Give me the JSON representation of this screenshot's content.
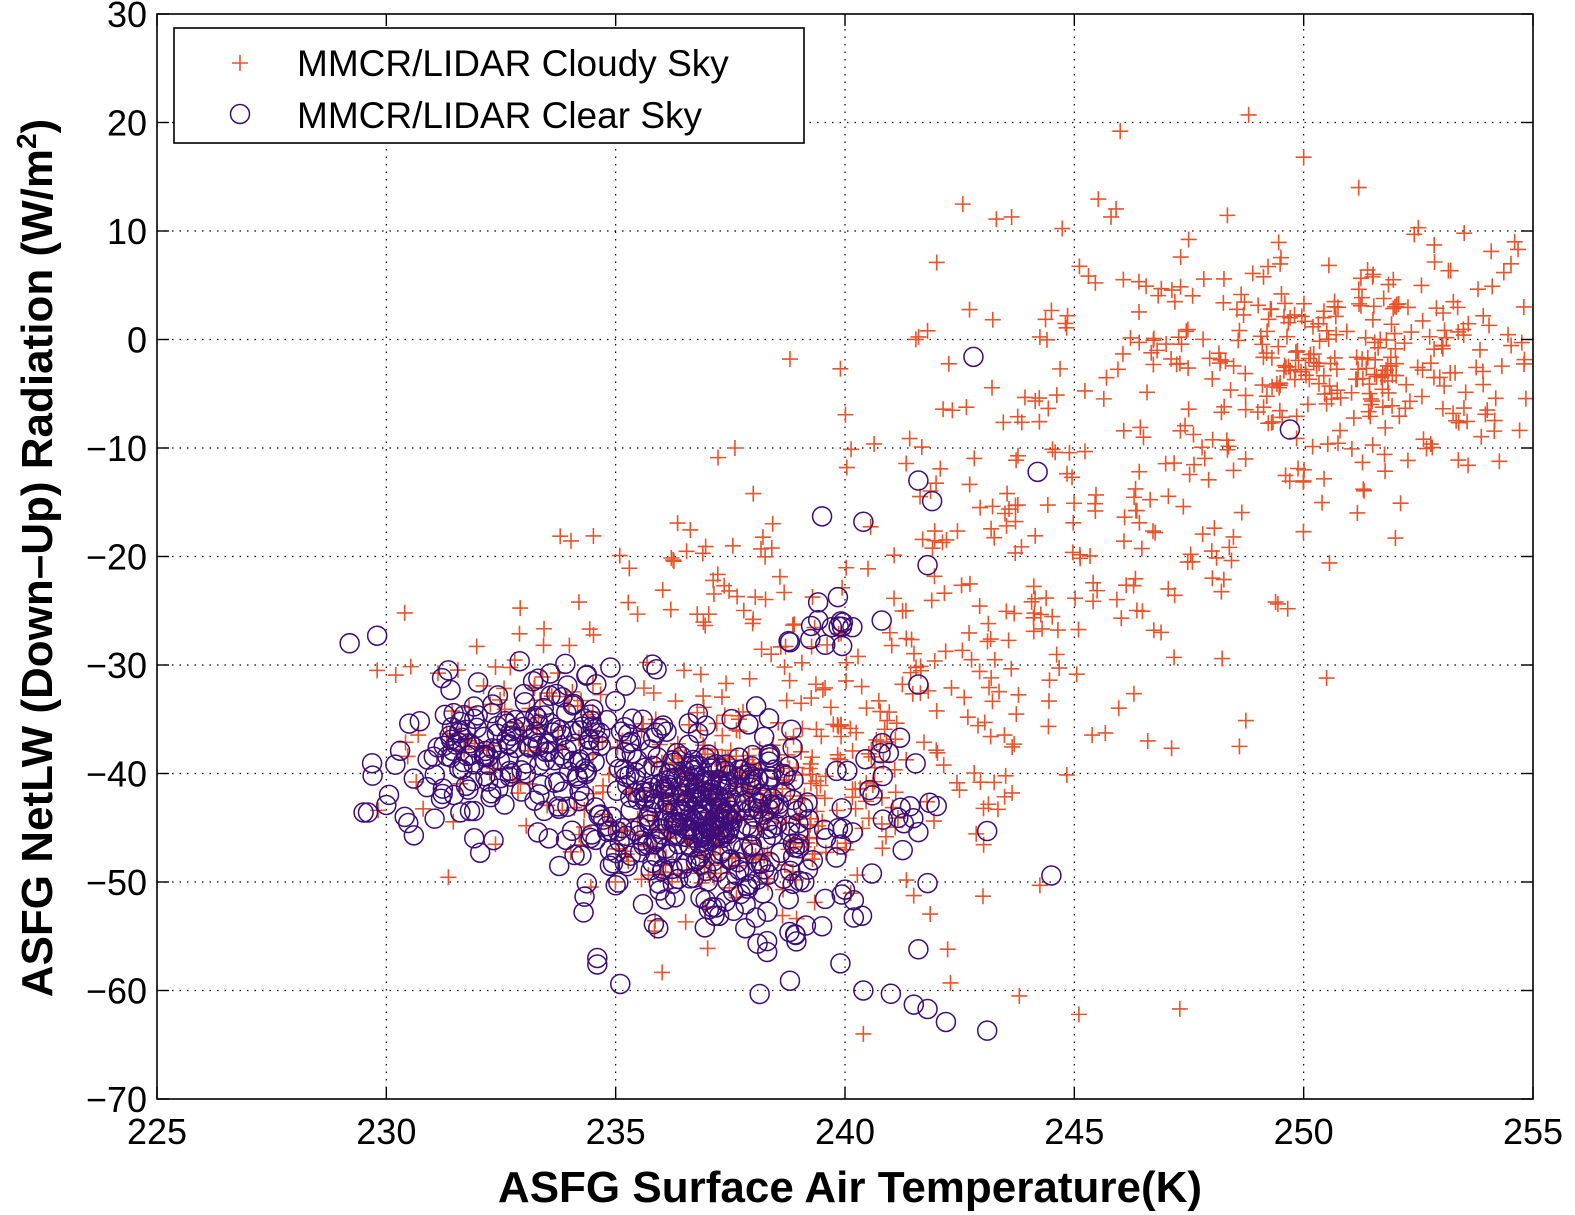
{
  "chart_data": {
    "type": "scatter",
    "xlabel": "ASFG Surface Air Temperature(K)",
    "ylabel_main": "ASFG NetLW (Down–Up) Radiation (W/m",
    "ylabel_sup": "2",
    "ylabel_end": ")",
    "xlim": [
      225,
      255
    ],
    "ylim": [
      -70,
      30
    ],
    "xticks": [
      225,
      230,
      235,
      240,
      245,
      250,
      255
    ],
    "yticks": [
      30,
      20,
      10,
      0,
      -10,
      -20,
      -30,
      -40,
      -50,
      -60,
      -70
    ],
    "xtick_labels": [
      "225",
      "230",
      "235",
      "240",
      "245",
      "250",
      "255"
    ],
    "ytick_labels": [
      "30",
      "20",
      "10",
      "0",
      "−10",
      "−20",
      "−30",
      "−40",
      "−50",
      "−60",
      "−70"
    ],
    "grid": true,
    "legend_position": "top-left",
    "series": [
      {
        "name": "MMCR/LIDAR Cloudy Sky",
        "marker": "plus",
        "color": "#e8532a",
        "clusters": [
          {
            "cx": 237.5,
            "cy": -43,
            "sx": 1.6,
            "sy": 5,
            "n": 260
          },
          {
            "cx": 233,
            "cy": -36,
            "sx": 1.6,
            "sy": 4,
            "n": 80
          },
          {
            "cx": 241,
            "cy": -38,
            "sx": 2.2,
            "sy": 8,
            "n": 120
          },
          {
            "cx": 243.5,
            "cy": -20,
            "sx": 2.2,
            "sy": 9,
            "n": 130
          },
          {
            "cx": 237.5,
            "cy": -25,
            "sx": 2.2,
            "sy": 6,
            "n": 60
          },
          {
            "cx": 247.5,
            "cy": -12,
            "sx": 2.0,
            "sy": 9,
            "n": 90
          },
          {
            "cx": 251,
            "cy": -2,
            "sx": 2.2,
            "sy": 5,
            "n": 280
          },
          {
            "cx": 246,
            "cy": 3,
            "sx": 2.0,
            "sy": 6,
            "n": 30
          }
        ],
        "points": [
          [
            229.8,
            -30.5
          ],
          [
            230.4,
            -25.2
          ],
          [
            246.0,
            19.2
          ],
          [
            248.8,
            20.7
          ],
          [
            250.0,
            16.8
          ],
          [
            243.3,
            11.1
          ],
          [
            245.8,
            11.3
          ],
          [
            251.2,
            14.0
          ],
          [
            252.5,
            10.3
          ],
          [
            242.0,
            7.1
          ],
          [
            253.5,
            9.8
          ],
          [
            254.6,
            9.0
          ],
          [
            237.6,
            -10.0
          ],
          [
            238.0,
            -14.2
          ],
          [
            234.2,
            -24.2
          ],
          [
            250.5,
            -31.2
          ],
          [
            248.6,
            -37.5
          ],
          [
            246.6,
            -37.0
          ],
          [
            243.8,
            -60.5
          ],
          [
            247.3,
            -61.7
          ],
          [
            240.4,
            -64.0
          ],
          [
            245.1,
            -62.2
          ],
          [
            242.3,
            -59.3
          ],
          [
            239.9,
            -2.7
          ],
          [
            238.8,
            -1.8
          ],
          [
            252.0,
            -18.3
          ],
          [
            251.3,
            -13.8
          ],
          [
            254.8,
            3.0
          ],
          [
            255.0,
            8.2
          ],
          [
            241.8,
            0.8
          ]
        ]
      },
      {
        "name": "MMCR/LIDAR Clear Sky",
        "marker": "circle",
        "color": "#3d0d78",
        "clusters": [
          {
            "cx": 237.2,
            "cy": -44,
            "sx": 1.0,
            "sy": 3.5,
            "n": 280
          },
          {
            "cx": 235.5,
            "cy": -42,
            "sx": 1.3,
            "sy": 4.5,
            "n": 130
          },
          {
            "cx": 231.8,
            "cy": -39,
            "sx": 0.9,
            "sy": 3,
            "n": 95
          },
          {
            "cx": 233.8,
            "cy": -36,
            "sx": 1.0,
            "sy": 3,
            "n": 70
          },
          {
            "cx": 239.6,
            "cy": -26,
            "sx": 0.25,
            "sy": 1.2,
            "n": 14
          },
          {
            "cx": 240.8,
            "cy": -42,
            "sx": 0.6,
            "sy": 3,
            "n": 22
          },
          {
            "cx": 238.6,
            "cy": -52,
            "sx": 0.9,
            "sy": 3.5,
            "n": 40
          }
        ],
        "points": [
          [
            229.2,
            -28.0
          ],
          [
            229.8,
            -27.3
          ],
          [
            242.8,
            -1.6
          ],
          [
            249.7,
            -8.3
          ],
          [
            244.2,
            -12.2
          ],
          [
            241.6,
            -13.0
          ],
          [
            241.9,
            -14.9
          ],
          [
            239.5,
            -16.3
          ],
          [
            240.4,
            -16.8
          ],
          [
            241.8,
            -20.8
          ],
          [
            241.6,
            -31.8
          ],
          [
            240.8,
            -25.9
          ],
          [
            238.8,
            -27.9
          ],
          [
            241.2,
            -36.7
          ],
          [
            244.5,
            -49.4
          ],
          [
            243.1,
            -45.3
          ],
          [
            243.1,
            -63.7
          ],
          [
            242.2,
            -62.9
          ],
          [
            241.8,
            -61.7
          ],
          [
            241.5,
            -61.3
          ],
          [
            241.0,
            -60.3
          ],
          [
            240.4,
            -60.0
          ],
          [
            239.9,
            -57.5
          ],
          [
            235.1,
            -59.4
          ],
          [
            234.6,
            -57.6
          ],
          [
            234.6,
            -57.0
          ],
          [
            238.8,
            -59.1
          ],
          [
            229.6,
            -43.6
          ],
          [
            229.7,
            -40.2
          ],
          [
            230.0,
            -42.9
          ],
          [
            230.4,
            -44.0
          ],
          [
            230.6,
            -45.7
          ],
          [
            230.3,
            -37.9
          ],
          [
            230.5,
            -35.4
          ],
          [
            231.4,
            -32.3
          ],
          [
            232.0,
            -31.6
          ],
          [
            233.2,
            -31.5
          ],
          [
            236.0,
            -45.6
          ],
          [
            234.3,
            -52.8
          ],
          [
            235.0,
            -50.3
          ],
          [
            241.8,
            -50.1
          ],
          [
            241.6,
            -56.2
          ],
          [
            242.0,
            -43.0
          ],
          [
            241.6,
            -45.4
          ],
          [
            240.0,
            -50.7
          ]
        ]
      }
    ]
  }
}
